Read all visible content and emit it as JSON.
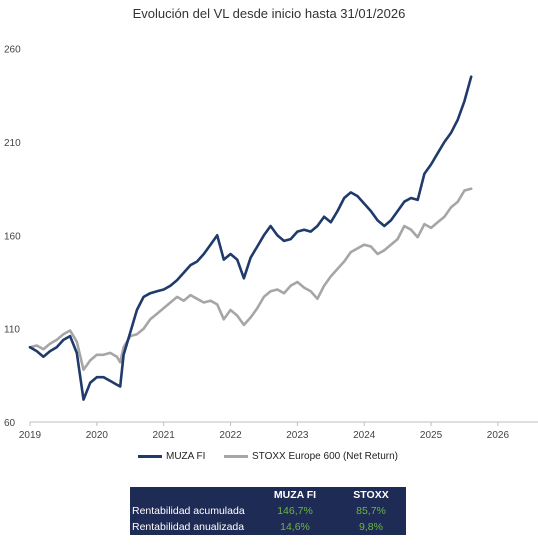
{
  "chart_data": {
    "type": "line",
    "title": "Evolución del VL desde inicio hasta 31/01/2026",
    "xlabel": "",
    "ylabel": "",
    "xlim": [
      2019,
      2026.6
    ],
    "ylim": [
      60,
      270
    ],
    "x_ticks": [
      2019,
      2020,
      2021,
      2022,
      2023,
      2024,
      2025,
      2026
    ],
    "y_ticks": [
      60,
      110,
      160,
      210,
      260
    ],
    "grid": false,
    "legend_position": "bottom",
    "series": [
      {
        "name": "MUZA FI",
        "color": "#1f3a6b",
        "x": [
          2019.0,
          2019.1,
          2019.2,
          2019.3,
          2019.4,
          2019.5,
          2019.6,
          2019.7,
          2019.8,
          2019.9,
          2020.0,
          2020.1,
          2020.2,
          2020.3,
          2020.35,
          2020.4,
          2020.5,
          2020.6,
          2020.7,
          2020.8,
          2020.9,
          2021.0,
          2021.1,
          2021.2,
          2021.3,
          2021.4,
          2021.5,
          2021.6,
          2021.7,
          2021.8,
          2021.9,
          2022.0,
          2022.1,
          2022.2,
          2022.3,
          2022.4,
          2022.5,
          2022.6,
          2022.7,
          2022.8,
          2022.9,
          2023.0,
          2023.1,
          2023.2,
          2023.3,
          2023.4,
          2023.5,
          2023.6,
          2023.7,
          2023.8,
          2023.9,
          2024.0,
          2024.1,
          2024.2,
          2024.3,
          2024.4,
          2024.5,
          2024.6,
          2024.7,
          2024.8,
          2024.9,
          2025.0,
          2025.1,
          2025.2,
          2025.3,
          2025.4,
          2025.5,
          2025.6
        ],
        "values": [
          100,
          98,
          95,
          98,
          100,
          104,
          106,
          97,
          72,
          81,
          84,
          84,
          82,
          80,
          79,
          96,
          108,
          120,
          127,
          129,
          130,
          131,
          133,
          136,
          140,
          144,
          146,
          150,
          155,
          160,
          147,
          150,
          147,
          137,
          148,
          154,
          160,
          165,
          160,
          157,
          158,
          162,
          163,
          162,
          165,
          170,
          167,
          173,
          180,
          183,
          181,
          177,
          173,
          168,
          165,
          168,
          173,
          178,
          180,
          179,
          193,
          198,
          204,
          210,
          215,
          222,
          232,
          245
        ]
      },
      {
        "name": "STOXX Europe 600 (Net Return)",
        "color": "#a6a6a6",
        "x": [
          2019.0,
          2019.1,
          2019.2,
          2019.3,
          2019.4,
          2019.5,
          2019.6,
          2019.7,
          2019.8,
          2019.9,
          2020.0,
          2020.1,
          2020.2,
          2020.3,
          2020.35,
          2020.4,
          2020.5,
          2020.6,
          2020.7,
          2020.8,
          2020.9,
          2021.0,
          2021.1,
          2021.2,
          2021.3,
          2021.4,
          2021.5,
          2021.6,
          2021.7,
          2021.8,
          2021.9,
          2022.0,
          2022.1,
          2022.2,
          2022.3,
          2022.4,
          2022.5,
          2022.6,
          2022.7,
          2022.8,
          2022.9,
          2023.0,
          2023.1,
          2023.2,
          2023.3,
          2023.4,
          2023.5,
          2023.6,
          2023.7,
          2023.8,
          2023.9,
          2024.0,
          2024.1,
          2024.2,
          2024.3,
          2024.4,
          2024.5,
          2024.6,
          2024.7,
          2024.8,
          2024.9,
          2025.0,
          2025.1,
          2025.2,
          2025.3,
          2025.4,
          2025.5,
          2025.6
        ],
        "values": [
          100,
          101,
          99,
          102,
          104,
          107,
          109,
          103,
          88,
          93,
          96,
          96,
          97,
          95,
          92,
          100,
          106,
          107,
          110,
          115,
          118,
          121,
          124,
          127,
          125,
          128,
          126,
          124,
          125,
          123,
          115,
          120,
          117,
          112,
          116,
          121,
          127,
          130,
          131,
          129,
          133,
          135,
          132,
          130,
          126,
          133,
          138,
          142,
          146,
          151,
          153,
          155,
          154,
          150,
          152,
          155,
          158,
          165,
          163,
          159,
          166,
          164,
          167,
          170,
          175,
          178,
          184,
          185
        ]
      }
    ]
  },
  "legend": {
    "muza": "MUZA FI",
    "stoxx": "STOXX Europe 600 (Net Return)"
  },
  "table": {
    "col1": "MUZA FI",
    "col2": "STOXX",
    "rows": [
      {
        "label": "Rentabilidad acumulada",
        "v1": "146,7%",
        "v2": "85,7%"
      },
      {
        "label": "Rentabilidad anualizada",
        "v1": "14,6%",
        "v2": "9,8%"
      }
    ]
  },
  "colors": {
    "muza": "#1f3a6b",
    "stoxx": "#a6a6a6",
    "table_bg": "#1e2b54",
    "table_value": "#6db544"
  }
}
